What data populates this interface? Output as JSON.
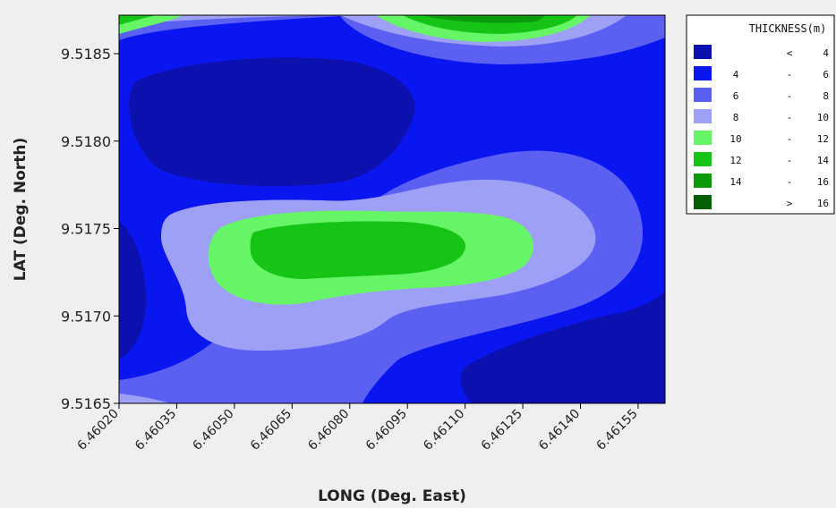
{
  "chart_data": {
    "type": "heatmap",
    "subtype": "filled-contour",
    "xlabel": "LONG (Deg. East)",
    "ylabel": "LAT (Deg. North)",
    "x_ticks": [
      "6.46020",
      "6.46035",
      "6.46050",
      "6.46065",
      "6.46080",
      "6.46095",
      "6.46110",
      "6.46125",
      "6.46140",
      "6.46155"
    ],
    "y_ticks": [
      "9.5165",
      "9.5170",
      "9.5175",
      "9.5180",
      "9.5185"
    ],
    "xlim": [
      6.4602,
      6.46162
    ],
    "ylim": [
      9.5165,
      9.51872
    ],
    "grid": false,
    "legend": {
      "position": "right",
      "title": "THICKNESS(m)",
      "entries": [
        {
          "low": "",
          "sep": "<",
          "high": "4",
          "color": "#0c10ae"
        },
        {
          "low": "4",
          "sep": "-",
          "high": "6",
          "color": "#0a16f0"
        },
        {
          "low": "6",
          "sep": "-",
          "high": "8",
          "color": "#5c60f2"
        },
        {
          "low": "8",
          "sep": "-",
          "high": "10",
          "color": "#9ea0f6"
        },
        {
          "low": "10",
          "sep": "-",
          "high": "12",
          "color": "#66f566"
        },
        {
          "low": "12",
          "sep": "-",
          "high": "14",
          "color": "#16c416"
        },
        {
          "low": "14",
          "sep": "-",
          "high": "16",
          "color": "#0a9a0a"
        },
        {
          "low": "",
          "sep": ">",
          "high": "16",
          "color": "#055f05"
        }
      ]
    }
  }
}
